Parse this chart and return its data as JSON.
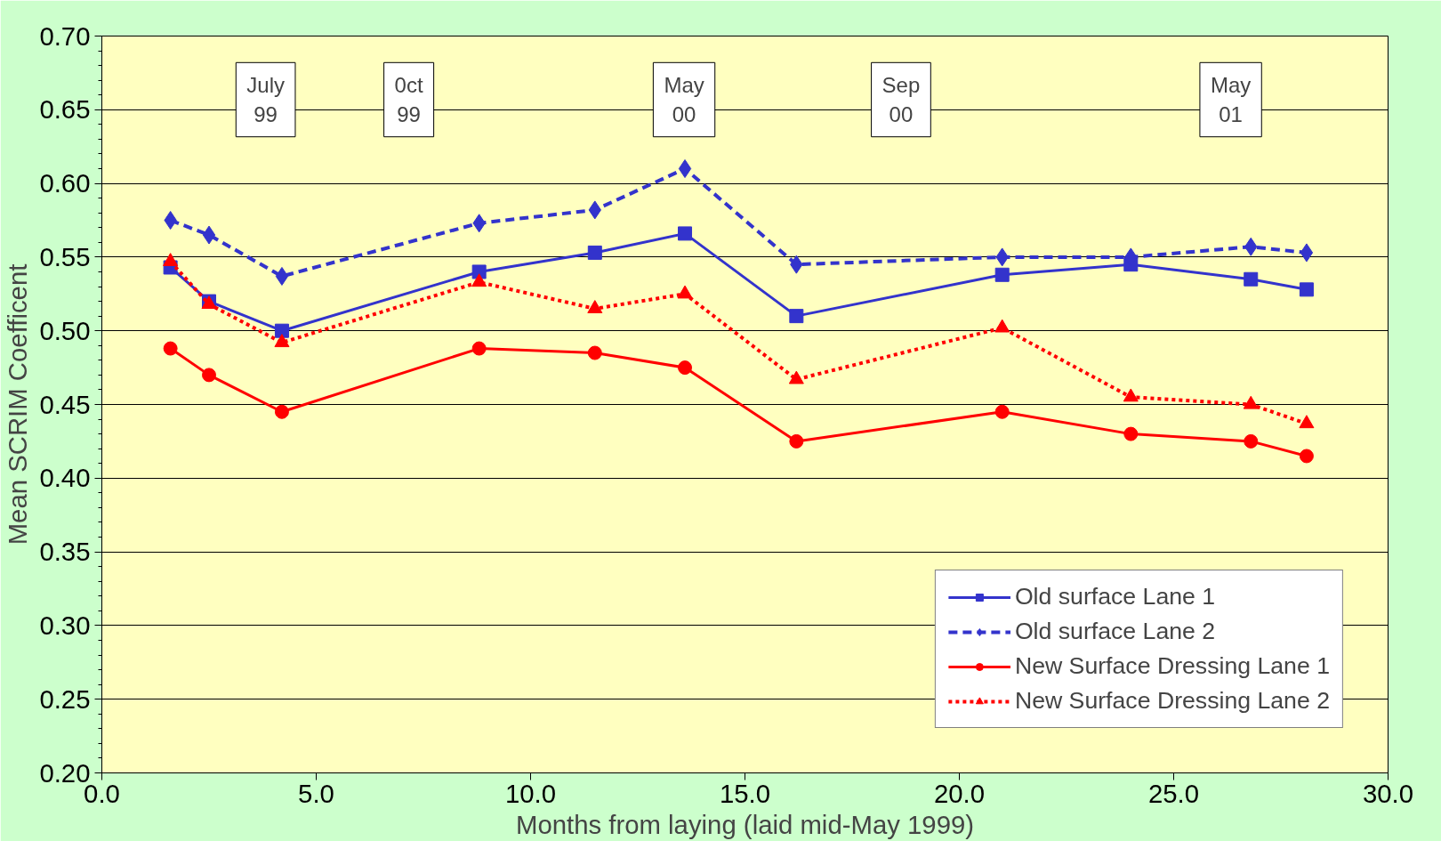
{
  "chart_data": {
    "type": "line",
    "xlabel": "Months from laying (laid mid-May 1999)",
    "ylabel": "Mean SCRIM Coefficent",
    "x": [
      1.6,
      2.5,
      4.2,
      8.8,
      11.5,
      13.6,
      16.2,
      21.0,
      24.0,
      26.8,
      28.1
    ],
    "series": [
      {
        "name": "Old surface Lane 1",
        "color": "#3333cc",
        "marker": "square",
        "line_style": "solid",
        "values": [
          0.543,
          0.52,
          0.5,
          0.54,
          0.553,
          0.566,
          0.51,
          0.538,
          0.545,
          0.535,
          0.528
        ]
      },
      {
        "name": "Old surface Lane 2",
        "color": "#3333cc",
        "marker": "diamond",
        "line_style": "dashed",
        "values": [
          0.575,
          0.565,
          0.537,
          0.573,
          0.582,
          0.61,
          0.545,
          0.55,
          0.55,
          0.557,
          0.553
        ]
      },
      {
        "name": "New Surface Dressing Lane 1",
        "color": "#ff0000",
        "marker": "circle",
        "line_style": "solid",
        "values": [
          0.488,
          0.47,
          0.445,
          0.488,
          0.485,
          0.475,
          0.425,
          0.445,
          0.43,
          0.425,
          0.415
        ]
      },
      {
        "name": "New Surface Dressing Lane 2",
        "color": "#ff0000",
        "marker": "triangle",
        "line_style": "dotted",
        "values": [
          0.547,
          0.518,
          0.492,
          0.533,
          0.515,
          0.525,
          0.467,
          0.502,
          0.455,
          0.45,
          0.437
        ]
      }
    ],
    "xlim": [
      0,
      30
    ],
    "ylim": [
      0.2,
      0.7
    ],
    "xticks": [
      {
        "value": 0,
        "label": "0.0"
      },
      {
        "value": 5,
        "label": "5.0"
      },
      {
        "value": 10,
        "label": "10.0"
      },
      {
        "value": 15,
        "label": "15.0"
      },
      {
        "value": 20,
        "label": "20.0"
      },
      {
        "value": 25,
        "label": "25.0"
      },
      {
        "value": 30,
        "label": "30.0"
      }
    ],
    "yticks": [
      {
        "value": 0.2,
        "label": "0.20"
      },
      {
        "value": 0.25,
        "label": "0.25"
      },
      {
        "value": 0.3,
        "label": "0.30"
      },
      {
        "value": 0.35,
        "label": "0.35"
      },
      {
        "value": 0.4,
        "label": "0.40"
      },
      {
        "value": 0.45,
        "label": "0.45"
      },
      {
        "value": 0.5,
        "label": "0.50"
      },
      {
        "value": 0.55,
        "label": "0.55"
      },
      {
        "value": 0.6,
        "label": "0.60"
      },
      {
        "value": 0.65,
        "label": "0.65"
      },
      {
        "value": 0.7,
        "label": "0.70"
      }
    ],
    "grid": "y",
    "legend": "bottom right",
    "annotations": [
      "July\n99",
      "0ct\n99",
      "May\n00",
      "Sep\n00",
      "May\n01"
    ]
  }
}
